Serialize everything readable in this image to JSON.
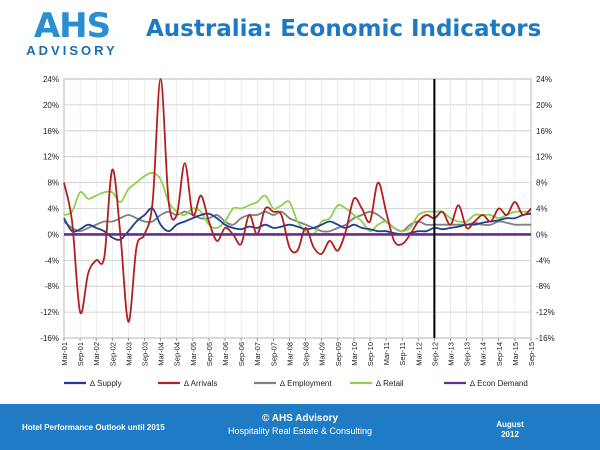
{
  "header": {
    "logo_text": "AHS",
    "logo_subtext": "ADVISORY",
    "title": "Australia: Economic Indicators"
  },
  "footer": {
    "left": "Hotel Performance Outlook until 2015",
    "center_line1": "© AHS Advisory",
    "center_line2": "Hospitality Real Estate & Consulting",
    "right_line1": "August",
    "right_line2": "2012"
  },
  "colors": {
    "title_blue": "#1e79c3",
    "footer_blue": "#1f7cc4",
    "supply": "#1f3f8f",
    "arrivals": "#b41e1e",
    "employment": "#808080",
    "retail": "#8fd14f",
    "econ_demand": "#6a2a8e"
  },
  "chart_data": {
    "type": "line",
    "x": [
      "Mar-01",
      "Jun-01",
      "Sep-01",
      "Dec-01",
      "Mar-02",
      "Jun-02",
      "Sep-02",
      "Dec-02",
      "Mar-03",
      "Jun-03",
      "Sep-03",
      "Dec-03",
      "Mar-04",
      "Jun-04",
      "Sep-04",
      "Dec-04",
      "Mar-05",
      "Jun-05",
      "Sep-05",
      "Dec-05",
      "Mar-06",
      "Jun-06",
      "Sep-06",
      "Dec-06",
      "Mar-07",
      "Jun-07",
      "Sep-07",
      "Dec-07",
      "Mar-08",
      "Jun-08",
      "Sep-08",
      "Dec-08",
      "Mar-09",
      "Jun-09",
      "Sep-09",
      "Dec-09",
      "Mar-10",
      "Jun-10",
      "Sep-10",
      "Dec-10",
      "Mar-11",
      "Jun-11",
      "Sep-11",
      "Dec-11",
      "Mar-12",
      "Jun-12",
      "Sep-12",
      "Dec-12",
      "Mar-13",
      "Jun-13",
      "Sep-13",
      "Dec-13",
      "Mar-14",
      "Jun-14",
      "Sep-14",
      "Dec-14",
      "Mar-15",
      "Jun-15",
      "Sep-15"
    ],
    "x_tick_labels": [
      "Mar-01",
      "Sep-01",
      "Mar-02",
      "Sep-02",
      "Mar-03",
      "Sep-03",
      "Mar-04",
      "Sep-04",
      "Mar-05",
      "Sep-05",
      "Mar-06",
      "Sep-06",
      "Mar-07",
      "Sep-07",
      "Mar-08",
      "Sep-08",
      "Mar-09",
      "Sep-09",
      "Mar-10",
      "Sep-10",
      "Mar-11",
      "Sep-11",
      "Mar-12",
      "Sep-12",
      "Mar-13",
      "Sep-13",
      "Mar-14",
      "Sep-14",
      "Mar-15",
      "Sep-15"
    ],
    "y_tick_labels": [
      "24%",
      "20%",
      "16%",
      "12%",
      "8%",
      "4%",
      "0%",
      "-4%",
      "-8%",
      "-12%",
      "-16%"
    ],
    "ylim": [
      -16,
      24
    ],
    "y_step": 4,
    "y_unit": "%",
    "y_axis_both_sides": true,
    "grid": true,
    "legend_position": "bottom",
    "forecast_divider_x": "Sep-12",
    "series": [
      {
        "name": "∆ Supply",
        "color_key": "supply",
        "values": [
          2.5,
          0.5,
          0.8,
          1.5,
          1.0,
          0.5,
          -0.5,
          -0.8,
          0.5,
          2.0,
          3.0,
          4.0,
          1.5,
          0.5,
          1.5,
          2.0,
          2.5,
          3.0,
          3.2,
          2.5,
          1.5,
          1.0,
          0.8,
          1.2,
          1.0,
          1.5,
          1.0,
          1.2,
          1.5,
          1.2,
          0.8,
          1.0,
          1.5,
          2.0,
          1.5,
          1.0,
          1.5,
          1.0,
          0.8,
          0.5,
          0.5,
          0.2,
          0.0,
          0.2,
          0.5,
          0.5,
          1.0,
          0.8,
          1.0,
          1.2,
          1.5,
          1.5,
          1.8,
          2.0,
          2.2,
          2.5,
          2.5,
          3.0,
          3.2
        ]
      },
      {
        "name": "∆ Arrivals",
        "color_key": "arrivals",
        "values": [
          8.0,
          2.0,
          -12.0,
          -6.0,
          -4.0,
          -3.5,
          10.0,
          0.0,
          -13.5,
          -2.0,
          0.0,
          5.0,
          24.0,
          5.0,
          3.0,
          11.0,
          3.0,
          6.0,
          2.0,
          -1.0,
          1.0,
          0.0,
          -1.5,
          3.0,
          0.0,
          4.0,
          3.5,
          3.0,
          -2.0,
          -2.5,
          1.0,
          -2.0,
          -3.0,
          -1.0,
          -2.5,
          0.5,
          5.5,
          4.0,
          2.0,
          8.0,
          3.5,
          -1.0,
          -1.5,
          0.0,
          2.0,
          3.0,
          2.5,
          3.5,
          1.5,
          4.5,
          1.0,
          2.0,
          3.0,
          2.0,
          4.0,
          3.0,
          5.0,
          3.0,
          4.0
        ]
      },
      {
        "name": "∆ Employment",
        "color_key": "employment",
        "values": [
          2.0,
          1.0,
          0.5,
          1.0,
          1.5,
          2.0,
          2.0,
          2.5,
          3.0,
          2.5,
          2.0,
          2.0,
          3.0,
          3.5,
          3.0,
          3.5,
          3.0,
          2.5,
          2.5,
          3.0,
          2.0,
          1.5,
          2.5,
          3.0,
          3.0,
          3.5,
          3.0,
          3.5,
          2.5,
          2.0,
          1.5,
          1.0,
          0.5,
          0.5,
          1.0,
          1.5,
          2.5,
          3.0,
          3.5,
          3.0,
          2.0,
          1.0,
          0.5,
          1.5,
          2.0,
          1.5,
          1.5,
          1.5,
          1.5,
          1.5,
          1.5,
          1.8,
          1.5,
          1.5,
          2.0,
          1.8,
          1.5,
          1.5,
          1.5
        ]
      },
      {
        "name": "∆ Retail",
        "color_key": "retail",
        "values": [
          3.0,
          3.5,
          6.5,
          5.5,
          6.0,
          6.5,
          6.5,
          5.0,
          7.0,
          8.0,
          9.0,
          9.5,
          8.5,
          5.0,
          3.5,
          3.0,
          4.0,
          3.5,
          1.5,
          1.0,
          2.0,
          4.0,
          4.0,
          4.5,
          5.0,
          6.0,
          4.0,
          4.5,
          5.0,
          2.0,
          0.5,
          0.0,
          2.0,
          2.5,
          4.5,
          4.0,
          3.0,
          2.0,
          0.5,
          1.5,
          2.0,
          1.0,
          0.5,
          1.0,
          3.0,
          3.5,
          3.5,
          3.5,
          2.5,
          2.0,
          2.0,
          3.0,
          3.0,
          3.0,
          2.5,
          3.0,
          3.5,
          3.5,
          3.5
        ]
      },
      {
        "name": "∆ Econ Demand",
        "color_key": "econ_demand",
        "values": [
          0,
          0,
          0,
          0,
          0,
          0,
          0,
          0,
          0,
          0,
          0,
          0,
          0,
          0,
          0,
          0,
          0,
          0,
          0,
          0,
          0,
          0,
          0,
          0,
          0,
          0,
          0,
          0,
          0,
          0,
          0,
          0,
          0,
          0,
          0,
          0,
          0,
          0,
          0,
          0,
          0,
          0,
          0,
          0,
          0,
          0,
          0,
          0,
          0,
          0,
          0,
          0,
          0,
          0,
          0,
          0,
          0,
          0,
          0
        ]
      }
    ]
  }
}
